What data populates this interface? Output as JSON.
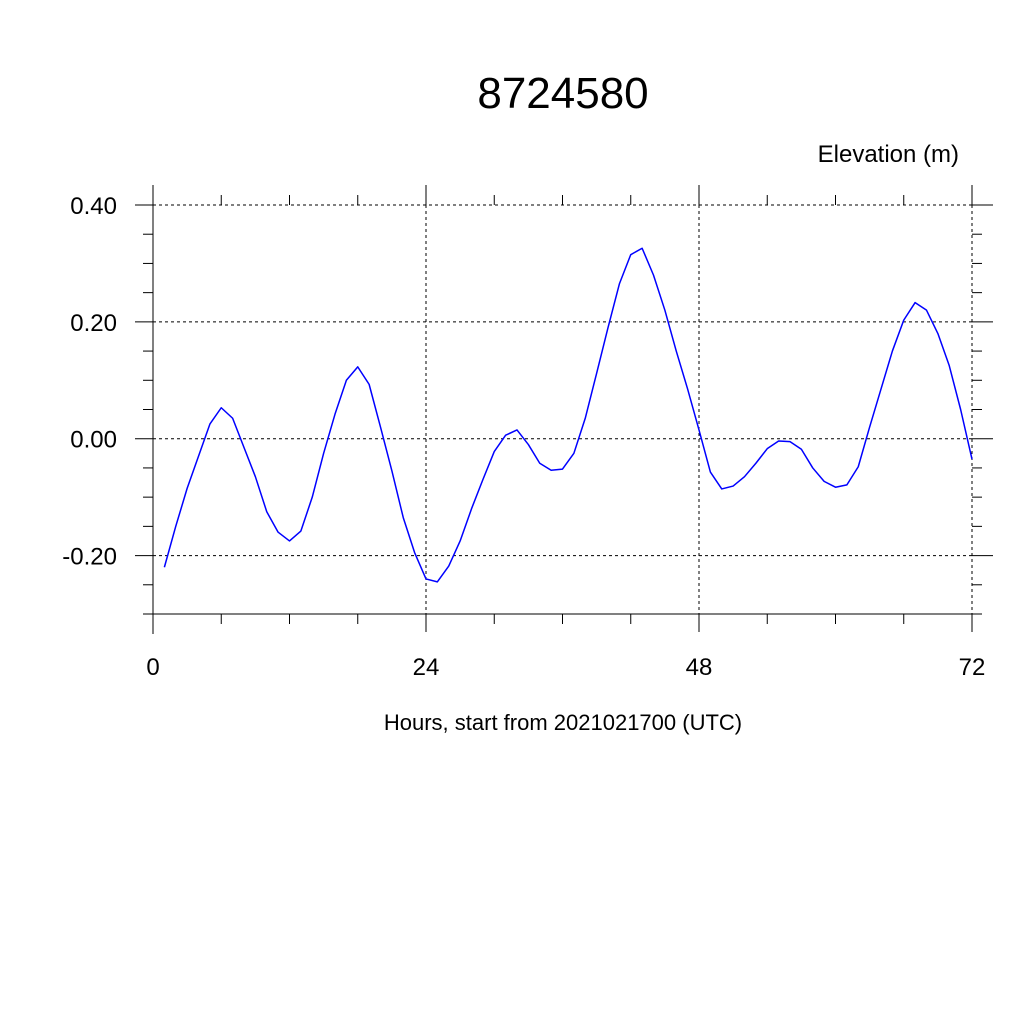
{
  "chart_data": {
    "type": "line",
    "title": "8724580",
    "ylabel": "Elevation (m)",
    "xlabel": "Hours, start from 2021021700 (UTC)",
    "xlim": [
      0,
      72
    ],
    "ylim": [
      -0.3,
      0.4
    ],
    "x_ticks": [
      0,
      24,
      48,
      72
    ],
    "x_tick_labels": [
      "0",
      "24",
      "48",
      "72"
    ],
    "x_minor_ticks": [
      6,
      12,
      18,
      30,
      36,
      42,
      54,
      60,
      66
    ],
    "y_ticks": [
      -0.2,
      0.0,
      0.2,
      0.4
    ],
    "y_tick_labels": [
      "-0.20",
      "0.00",
      "0.20",
      "0.40"
    ],
    "y_minor_step": 0.05,
    "grid": true,
    "grid_style": "dashed",
    "series": [
      {
        "color": "#0000ff",
        "x": [
          1,
          2,
          3,
          4,
          5,
          6,
          7,
          8,
          9,
          10,
          11,
          12,
          13,
          14,
          15,
          16,
          17,
          18,
          19,
          20,
          21,
          22,
          23,
          24,
          25,
          26,
          27,
          28,
          29,
          30,
          31,
          32,
          33,
          34,
          35,
          36,
          37,
          38,
          39,
          40,
          41,
          42,
          43,
          44,
          45,
          46,
          47,
          48,
          49,
          50,
          51,
          52,
          53,
          54,
          55,
          56,
          57,
          58,
          59,
          60,
          61,
          62,
          63,
          64,
          65,
          66,
          67,
          68,
          69,
          70,
          71,
          72
        ],
        "values": [
          -0.22,
          -0.15,
          -0.085,
          -0.03,
          0.025,
          0.053,
          0.035,
          -0.015,
          -0.065,
          -0.125,
          -0.16,
          -0.175,
          -0.158,
          -0.1,
          -0.025,
          0.042,
          0.1,
          0.123,
          0.093,
          0.02,
          -0.055,
          -0.135,
          -0.195,
          -0.24,
          -0.245,
          -0.218,
          -0.175,
          -0.12,
          -0.07,
          -0.022,
          0.006,
          0.015,
          -0.01,
          -0.042,
          -0.054,
          -0.052,
          -0.025,
          0.035,
          0.112,
          0.19,
          0.265,
          0.315,
          0.326,
          0.28,
          0.22,
          0.15,
          0.085,
          0.015,
          -0.057,
          -0.086,
          -0.081,
          -0.065,
          -0.042,
          -0.017,
          -0.004,
          -0.005,
          -0.018,
          -0.05,
          -0.073,
          -0.083,
          -0.079,
          -0.048,
          0.02,
          0.085,
          0.15,
          0.203,
          0.233,
          0.22,
          0.18,
          0.125,
          0.05,
          -0.035
        ]
      }
    ]
  }
}
